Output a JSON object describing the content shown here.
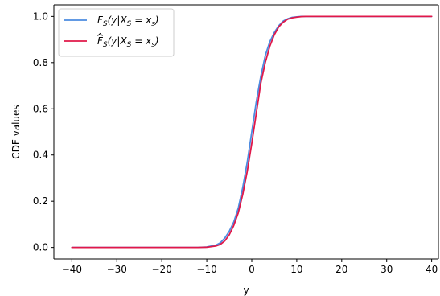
{
  "chart_data": {
    "type": "line",
    "title": "",
    "xlabel": "y",
    "ylabel": "CDF values",
    "xlim": [
      -44,
      41.5
    ],
    "ylim": [
      -0.05,
      1.05
    ],
    "xticks": [
      -40,
      -30,
      -20,
      -10,
      0,
      10,
      20,
      30,
      40
    ],
    "xtick_labels": [
      "−40",
      "−30",
      "−20",
      "−10",
      "0",
      "10",
      "20",
      "30",
      "40"
    ],
    "yticks": [
      0.0,
      0.2,
      0.4,
      0.6,
      0.8,
      1.0
    ],
    "ytick_labels": [
      "0.0",
      "0.2",
      "0.4",
      "0.6",
      "0.8",
      "1.0"
    ],
    "grid": false,
    "legend_position": "top-left",
    "series": [
      {
        "name": "F_S(y|X_S = x_s)",
        "color": "#4c8be0",
        "x": [
          -40,
          -12,
          -10,
          -8,
          -7,
          -6,
          -5,
          -4,
          -3,
          -2,
          -1,
          0,
          1,
          2,
          3,
          4,
          5,
          6,
          7,
          8,
          9,
          10,
          11,
          12,
          40
        ],
        "y": [
          0.0,
          0.0,
          0.002,
          0.01,
          0.02,
          0.04,
          0.07,
          0.11,
          0.17,
          0.26,
          0.37,
          0.5,
          0.63,
          0.74,
          0.83,
          0.89,
          0.93,
          0.96,
          0.98,
          0.99,
          0.996,
          0.998,
          1.0,
          1.0,
          1.0
        ]
      },
      {
        "name": "F̂_S(y|X_S = x_s)",
        "color": "#e0184a",
        "x": [
          -40,
          -12,
          -10,
          -8,
          -7,
          -6,
          -5,
          -4,
          -3,
          -2,
          -1,
          0,
          1,
          2,
          3,
          4,
          5,
          6,
          7,
          8,
          9,
          10,
          11,
          12,
          40
        ],
        "y": [
          0.0,
          0.0,
          0.001,
          0.006,
          0.013,
          0.028,
          0.055,
          0.095,
          0.15,
          0.23,
          0.33,
          0.45,
          0.58,
          0.71,
          0.8,
          0.87,
          0.92,
          0.955,
          0.975,
          0.988,
          0.994,
          0.997,
          0.999,
          1.0,
          1.0
        ]
      }
    ]
  },
  "legend": {
    "entries": [
      {
        "prefix": "F",
        "sub": "S",
        "args": "(y|X",
        "sub2": "S",
        "eq": " = x",
        "sub3": "s",
        "close": ")",
        "hat": false
      },
      {
        "prefix": "F",
        "sub": "S",
        "args": "(y|X",
        "sub2": "S",
        "eq": " = x",
        "sub3": "s",
        "close": ")",
        "hat": true
      }
    ]
  }
}
